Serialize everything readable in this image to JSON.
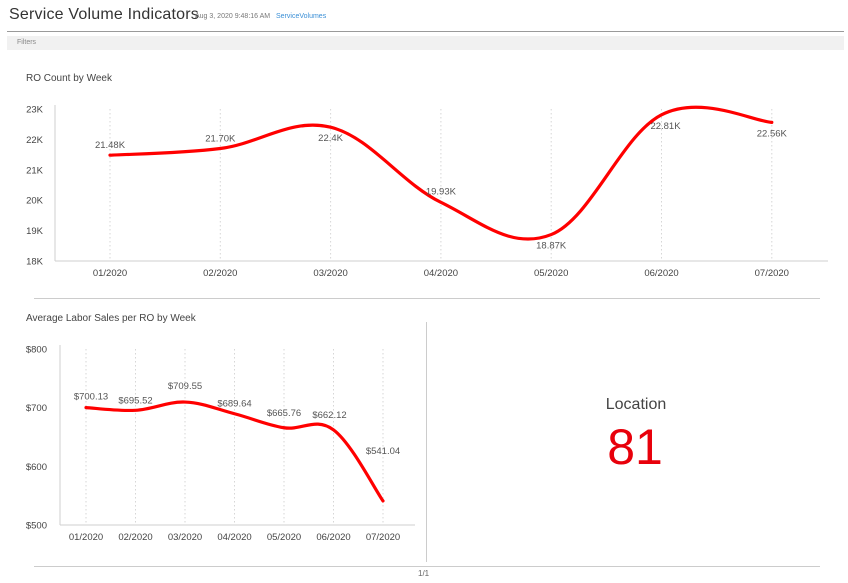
{
  "header": {
    "title": "Service Volume Indicators",
    "timestamp": "Aug 3, 2020 9:48:16 AM",
    "link": "ServiceVolumes"
  },
  "filters": {
    "label": "Filters"
  },
  "chart_data": [
    {
      "type": "line",
      "title": "RO Count by Week",
      "categories": [
        "01/2020",
        "02/2020",
        "03/2020",
        "04/2020",
        "05/2020",
        "06/2020",
        "07/2020"
      ],
      "values": [
        21.48,
        21.7,
        22.4,
        19.93,
        18.87,
        22.81,
        22.56
      ],
      "data_labels": [
        "21.48K",
        "21.70K",
        "22.4K",
        "19.93K",
        "18.87K",
        "22.81K",
        "22.56K"
      ],
      "y_ticks": [
        "18K",
        "19K",
        "20K",
        "21K",
        "22K",
        "23K"
      ],
      "ylim": [
        18,
        23
      ],
      "color": "#ff0000"
    },
    {
      "type": "line",
      "title": "Average Labor Sales per RO by Week",
      "categories": [
        "01/2020",
        "02/2020",
        "03/2020",
        "04/2020",
        "05/2020",
        "06/2020",
        "07/2020"
      ],
      "values": [
        700.13,
        695.52,
        709.55,
        689.64,
        665.76,
        662.12,
        541.04
      ],
      "data_labels": [
        "$700.13",
        "$695.52",
        "$709.55",
        "$689.64",
        "$665.76",
        "$662.12",
        "$541.04"
      ],
      "y_ticks": [
        "$500",
        "$600",
        "$700",
        "$800"
      ],
      "ylim": [
        500,
        800
      ],
      "color": "#ff0000"
    }
  ],
  "kpi": {
    "label": "Location",
    "value": "81",
    "color": "#e8000b"
  },
  "pager": {
    "text": "1/1"
  }
}
